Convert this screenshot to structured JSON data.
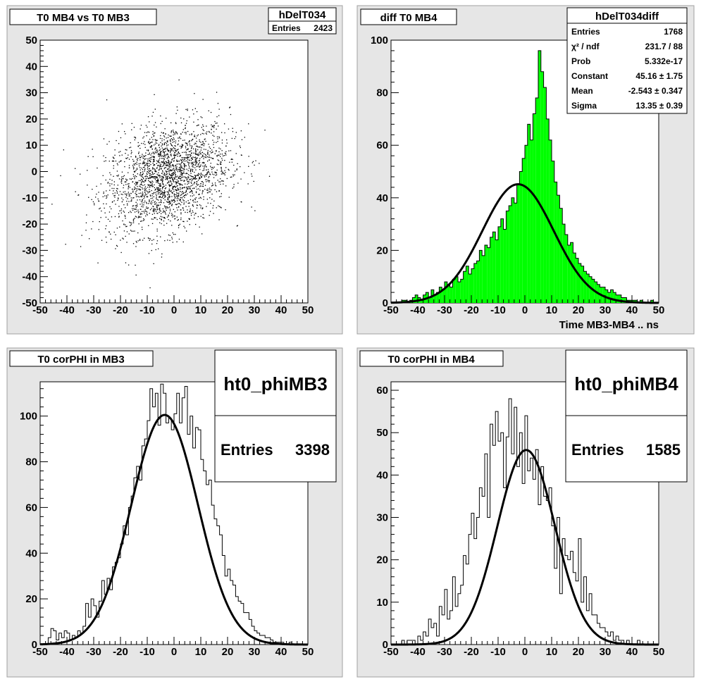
{
  "colors": {
    "pad_bg": "#e6e6e6",
    "frame_bg": "#ffffff",
    "hist_fill": "#00ff00",
    "line": "#000000"
  },
  "chart_data": [
    {
      "type": "scatter",
      "title": "T0 MB4 vs T0 MB3",
      "stats": {
        "name": "hDelT034",
        "rows": [
          {
            "label": "Entries",
            "value": "2423"
          }
        ]
      },
      "xlim": [
        -50,
        50
      ],
      "ylim": [
        -50,
        50
      ],
      "xticks": [
        "-50",
        "-40",
        "-30",
        "-20",
        "-10",
        "0",
        "10",
        "20",
        "30",
        "40",
        "50"
      ],
      "yticks": [
        "-50",
        "-40",
        "-30",
        "-20",
        "-10",
        "0",
        "10",
        "20",
        "30",
        "40",
        "50"
      ],
      "distribution": {
        "entries": 2423,
        "mean_x": -2.5,
        "mean_y": -2.0,
        "sigma_x": 11.5,
        "sigma_y": 10.5,
        "correlation": 0.3
      }
    },
    {
      "type": "histogram",
      "title": "diff T0 MB4",
      "xlabel": "Time MB3-MB4  ..  ns",
      "stats": {
        "name": "hDelT034diff",
        "rows": [
          {
            "label": "Entries",
            "value": "1768"
          },
          {
            "label": "χ² / ndf",
            "value": "231.7 / 88"
          },
          {
            "label": "Prob",
            "value": "5.332e-17"
          },
          {
            "label": "Constant",
            "value": "45.16 ± 1.75"
          },
          {
            "label": "Mean",
            "value": "-2.543 ± 0.347"
          },
          {
            "label": "Sigma",
            "value": "13.35 ± 0.39"
          }
        ]
      },
      "xlim": [
        -50,
        50
      ],
      "ylim": [
        0,
        100
      ],
      "xticks": [
        "-50",
        "-40",
        "-30",
        "-20",
        "-10",
        "0",
        "10",
        "20",
        "30",
        "40",
        "50"
      ],
      "yticks": [
        "0",
        "20",
        "40",
        "60",
        "80",
        "100"
      ],
      "bin_edges_start": -50,
      "bin_width": 1,
      "values": [
        0,
        0,
        0,
        0,
        1,
        1,
        0,
        1,
        2,
        3,
        2,
        1,
        3,
        4,
        2,
        5,
        3,
        4,
        6,
        5,
        8,
        7,
        6,
        9,
        10,
        8,
        9,
        12,
        14,
        11,
        13,
        15,
        16,
        20,
        18,
        22,
        21,
        25,
        27,
        24,
        29,
        32,
        28,
        35,
        37,
        40,
        38,
        45,
        50,
        55,
        60,
        68,
        62,
        72,
        78,
        96,
        88,
        82,
        70,
        62,
        54,
        46,
        41,
        36,
        30,
        26,
        22,
        23,
        19,
        17,
        15,
        14,
        12,
        11,
        10,
        9,
        8,
        7,
        6,
        6,
        5,
        4,
        5,
        4,
        3,
        3,
        2,
        2,
        1,
        1,
        1,
        1,
        0,
        1,
        0,
        0,
        0,
        1,
        0,
        0
      ],
      "fit": {
        "type": "gaus",
        "constant": 45.16,
        "mean": -2.543,
        "sigma": 13.35
      }
    },
    {
      "type": "histogram",
      "title": "T0 corPHI in MB3",
      "stats_big": {
        "name": "ht0_phiMB3",
        "entries_label": "Entries",
        "entries_value": "3398"
      },
      "xlim": [
        -50,
        50
      ],
      "ylim": [
        0,
        115
      ],
      "xticks": [
        "-50",
        "-40",
        "-30",
        "-20",
        "-10",
        "0",
        "10",
        "20",
        "30",
        "40",
        "50"
      ],
      "yticks": [
        "0",
        "20",
        "40",
        "60",
        "80",
        "100"
      ],
      "bin_edges_start": -50,
      "bin_width": 1,
      "values": [
        0,
        0,
        0,
        3,
        7,
        6,
        2,
        5,
        3,
        6,
        5,
        2,
        4,
        3,
        6,
        5,
        8,
        18,
        12,
        20,
        17,
        12,
        19,
        28,
        22,
        29,
        24,
        34,
        36,
        38,
        44,
        52,
        48,
        60,
        65,
        73,
        78,
        72,
        87,
        90,
        98,
        112,
        104,
        110,
        96,
        114,
        110,
        97,
        99,
        94,
        101,
        110,
        97,
        108,
        113,
        92,
        100,
        86,
        95,
        94,
        81,
        76,
        70,
        72,
        61,
        55,
        52,
        48,
        39,
        30,
        33,
        28,
        26,
        21,
        19,
        18,
        14,
        14,
        11,
        8,
        6,
        5,
        4,
        4,
        3,
        3,
        2,
        1,
        1,
        1,
        1,
        0,
        0,
        1,
        0,
        0,
        0,
        0,
        0,
        0
      ],
      "fit": {
        "type": "gaus",
        "constant": 100.5,
        "mean": -3.5,
        "sigma": 12.5
      }
    },
    {
      "type": "histogram",
      "title": "T0 corPHI in MB4",
      "stats_big": {
        "name": "ht0_phiMB4",
        "entries_label": "Entries",
        "entries_value": "1585"
      },
      "xlim": [
        -50,
        50
      ],
      "ylim": [
        0,
        62
      ],
      "xticks": [
        "-50",
        "-40",
        "-30",
        "-20",
        "-10",
        "0",
        "10",
        "20",
        "30",
        "40",
        "50"
      ],
      "yticks": [
        "0",
        "10",
        "20",
        "30",
        "40",
        "50",
        "60"
      ],
      "bin_edges_start": -50,
      "bin_width": 1,
      "values": [
        0,
        0,
        0,
        0,
        1,
        0,
        1,
        1,
        1,
        0,
        2,
        1,
        3,
        2,
        6,
        4,
        5,
        2,
        9,
        7,
        13,
        6,
        8,
        16,
        9,
        12,
        14,
        21,
        19,
        26,
        31,
        25,
        30,
        37,
        35,
        45,
        30,
        52,
        47,
        55,
        48,
        50,
        37,
        49,
        58,
        45,
        56,
        42,
        50,
        38,
        54,
        41,
        44,
        39,
        46,
        33,
        42,
        35,
        34,
        37,
        28,
        18,
        30,
        12,
        25,
        21,
        20,
        22,
        17,
        15,
        25,
        10,
        16,
        8,
        12,
        7,
        7,
        5,
        4,
        4,
        3,
        2,
        3,
        1,
        2,
        1,
        1,
        0,
        1,
        0,
        0,
        0,
        1,
        0,
        0,
        0,
        0,
        0,
        0,
        0
      ],
      "fit": {
        "type": "gaus",
        "constant": 45.9,
        "mean": 0.5,
        "sigma": 10.8
      }
    }
  ]
}
